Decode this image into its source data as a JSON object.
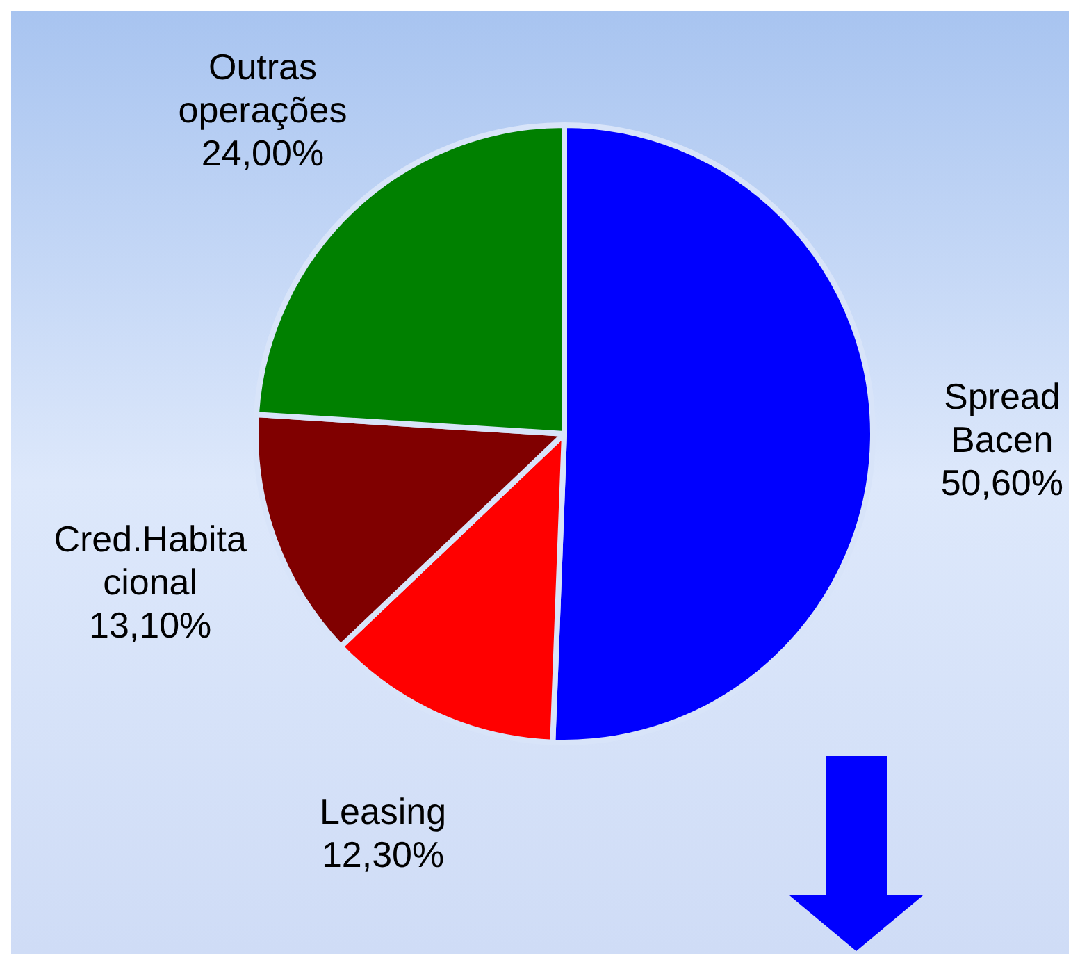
{
  "chart_data": {
    "type": "pie",
    "categories": [
      "Spread Bacen",
      "Leasing",
      "Cred.Habitacional",
      "Outras operações"
    ],
    "values": [
      50.6,
      12.3,
      13.1,
      24.0
    ],
    "colors": [
      "#0000ff",
      "#ff0000",
      "#800000",
      "#008000"
    ],
    "value_labels": [
      "50,60%",
      "12,30%",
      "13,10%",
      "24,00%"
    ],
    "legend": false
  }
}
